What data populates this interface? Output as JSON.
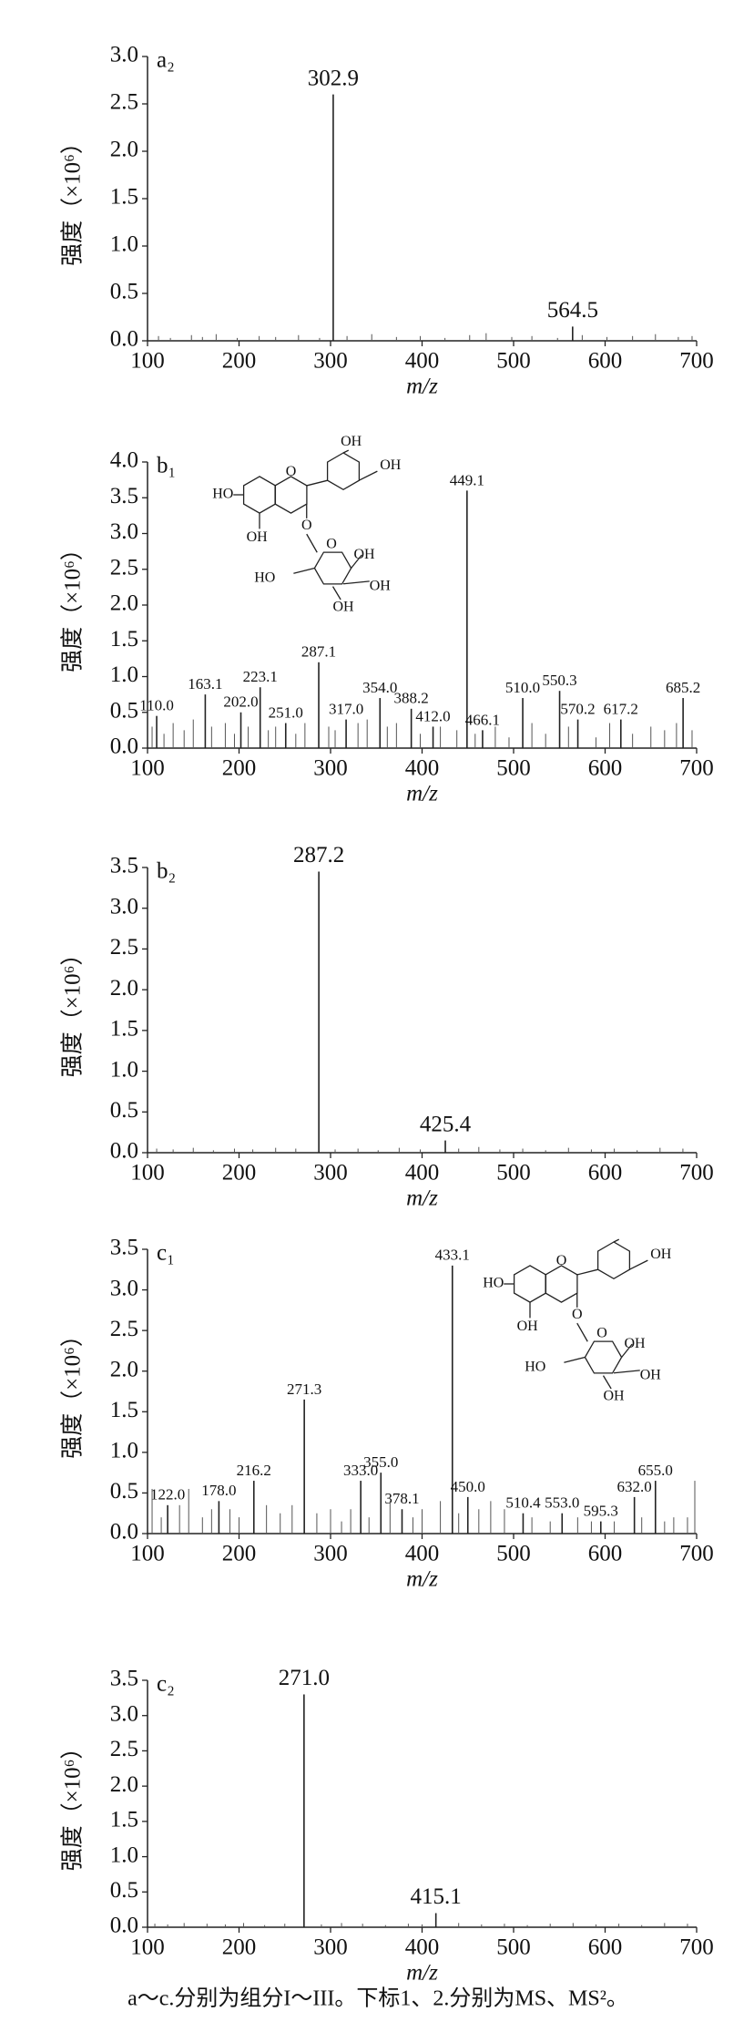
{
  "chart_data": [
    {
      "type": "bar",
      "panel_label": "a₂",
      "ylabel": "强度（×10⁶）",
      "xlabel": "m/z",
      "xlim": [
        100,
        700
      ],
      "xticks": [
        100,
        200,
        300,
        400,
        500,
        600,
        700
      ],
      "ylim": [
        0,
        3
      ],
      "yticks": [
        {
          "value": 0,
          "label": "0.0"
        },
        {
          "value": 0.5,
          "label": "0.5"
        },
        {
          "value": 1,
          "label": "1.0"
        },
        {
          "value": 1.5,
          "label": "1.5"
        },
        {
          "value": 2,
          "label": "2.0"
        },
        {
          "value": 2.5,
          "label": "2.5"
        },
        {
          "value": 3,
          "label": "3.0"
        }
      ],
      "series": [
        {
          "color": "#222222",
          "x": [
            302.9,
            564.5
          ],
          "x_labels": [
            "302.9",
            "564.5"
          ],
          "values": [
            2.6,
            0.15
          ]
        },
        {
          "color": "#555555",
          "x": [
            112,
            125,
            148,
            160,
            175,
            198,
            222,
            240,
            265,
            288,
            318,
            345,
            372,
            398,
            425,
            452,
            470,
            498,
            520,
            548,
            575,
            602,
            630,
            655,
            680,
            695
          ],
          "values": [
            0.05,
            0.03,
            0.06,
            0.04,
            0.07,
            0.03,
            0.05,
            0.04,
            0.06,
            0.03,
            0.05,
            0.07,
            0.04,
            0.05,
            0.03,
            0.06,
            0.08,
            0.04,
            0.05,
            0.03,
            0.06,
            0.04,
            0.05,
            0.07,
            0.04,
            0.05
          ]
        }
      ]
    },
    {
      "type": "bar",
      "panel_label": "b₁",
      "ylabel": "强度（×10⁶）",
      "xlabel": "m/z",
      "xlim": [
        100,
        700
      ],
      "xticks": [
        100,
        200,
        300,
        400,
        500,
        600,
        700
      ],
      "ylim": [
        0,
        4
      ],
      "yticks": [
        {
          "value": 0,
          "label": "0.0"
        },
        {
          "value": 0.5,
          "label": "0.5"
        },
        {
          "value": 1,
          "label": "1.0"
        },
        {
          "value": 1.5,
          "label": "1.5"
        },
        {
          "value": 2,
          "label": "2.0"
        },
        {
          "value": 2.5,
          "label": "2.5"
        },
        {
          "value": 3,
          "label": "3.0"
        },
        {
          "value": 3.5,
          "label": "3.5"
        },
        {
          "value": 4,
          "label": "4.0"
        }
      ],
      "structure_labels": [
        "OH",
        "OH",
        "HO",
        "O",
        "OH",
        "O",
        "O",
        "OH",
        "HO",
        "OH",
        "OH"
      ],
      "series": [
        {
          "color": "#222222",
          "x": [
            110.0,
            163.1,
            202.0,
            223.1,
            251.0,
            287.1,
            317.0,
            354.0,
            388.2,
            412.0,
            449.1,
            466.1,
            510.0,
            550.3,
            570.2,
            617.2,
            685.2
          ],
          "x_labels": [
            "110.0",
            "163.1",
            "202.0",
            "223.1",
            "251.0",
            "287.1",
            "317.0",
            "354.0",
            "388.2",
            "412.0",
            "449.1",
            "466.1",
            "510.0",
            "550.3",
            "570.2",
            "617.2",
            "685.2"
          ],
          "values": [
            0.45,
            0.75,
            0.5,
            0.85,
            0.35,
            1.2,
            0.4,
            0.7,
            0.55,
            0.3,
            3.6,
            0.25,
            0.7,
            0.8,
            0.4,
            0.4,
            0.7
          ]
        },
        {
          "color": "#555555",
          "x": [
            105,
            118,
            128,
            140,
            150,
            170,
            185,
            195,
            210,
            232,
            240,
            262,
            272,
            298,
            305,
            330,
            340,
            362,
            372,
            398,
            420,
            438,
            458,
            480,
            495,
            520,
            535,
            560,
            590,
            605,
            630,
            650,
            665,
            678,
            695
          ],
          "values": [
            0.3,
            0.2,
            0.35,
            0.25,
            0.4,
            0.3,
            0.35,
            0.2,
            0.3,
            0.25,
            0.3,
            0.2,
            0.35,
            0.3,
            0.25,
            0.35,
            0.4,
            0.3,
            0.35,
            0.2,
            0.3,
            0.25,
            0.2,
            0.3,
            0.15,
            0.35,
            0.2,
            0.3,
            0.15,
            0.35,
            0.2,
            0.3,
            0.25,
            0.35,
            0.25
          ]
        }
      ]
    },
    {
      "type": "bar",
      "panel_label": "b₂",
      "ylabel": "强度（×10⁶）",
      "xlabel": "m/z",
      "xlim": [
        100,
        700
      ],
      "xticks": [
        100,
        200,
        300,
        400,
        500,
        600,
        700
      ],
      "ylim": [
        0,
        3.5
      ],
      "yticks": [
        {
          "value": 0,
          "label": "0.0"
        },
        {
          "value": 0.5,
          "label": "0.5"
        },
        {
          "value": 1,
          "label": "1.0"
        },
        {
          "value": 1.5,
          "label": "1.5"
        },
        {
          "value": 2,
          "label": "2.0"
        },
        {
          "value": 2.5,
          "label": "2.5"
        },
        {
          "value": 3,
          "label": "3.0"
        },
        {
          "value": 3.5,
          "label": "3.5"
        }
      ],
      "series": [
        {
          "color": "#222222",
          "x": [
            287.2,
            425.4
          ],
          "x_labels": [
            "287.2",
            "425.4"
          ],
          "values": [
            3.45,
            0.15
          ]
        },
        {
          "color": "#555555",
          "x": [
            110,
            128,
            150,
            172,
            195,
            215,
            240,
            262,
            305,
            330,
            352,
            375,
            398,
            440,
            462,
            485,
            510,
            535,
            560,
            585,
            610,
            635,
            660,
            685
          ],
          "values": [
            0.05,
            0.04,
            0.06,
            0.03,
            0.05,
            0.04,
            0.06,
            0.05,
            0.04,
            0.05,
            0.03,
            0.06,
            0.04,
            0.05,
            0.07,
            0.04,
            0.05,
            0.03,
            0.06,
            0.04,
            0.05,
            0.03,
            0.06,
            0.05
          ]
        }
      ]
    },
    {
      "type": "bar",
      "panel_label": "c₁",
      "ylabel": "强度（×10⁶）",
      "xlabel": "m/z",
      "xlim": [
        100,
        700
      ],
      "xticks": [
        100,
        200,
        300,
        400,
        500,
        600,
        700
      ],
      "ylim": [
        0,
        3.5
      ],
      "yticks": [
        {
          "value": 0,
          "label": "0.0"
        },
        {
          "value": 0.5,
          "label": "0.5"
        },
        {
          "value": 1,
          "label": "1.0"
        },
        {
          "value": 1.5,
          "label": "1.5"
        },
        {
          "value": 2,
          "label": "2.0"
        },
        {
          "value": 2.5,
          "label": "2.5"
        },
        {
          "value": 3,
          "label": "3.0"
        },
        {
          "value": 3.5,
          "label": "3.5"
        }
      ],
      "structure_labels": [
        "OH",
        "HO",
        "O",
        "OH",
        "O",
        "O",
        "OH",
        "HO",
        "OH",
        "OH"
      ],
      "series": [
        {
          "color": "#222222",
          "x": [
            122.0,
            178.0,
            216.2,
            271.3,
            333.0,
            355.0,
            378.1,
            433.1,
            450.0,
            510.4,
            553.0,
            595.3,
            632.0,
            655.0
          ],
          "x_labels": [
            "122.0",
            "178.0",
            "216.2",
            "271.3",
            "333.0",
            "355.0",
            "378.1",
            "433.1",
            "450.0",
            "510.4",
            "553.0",
            "595.3",
            "632.0",
            "655.0"
          ],
          "values": [
            0.35,
            0.4,
            0.65,
            1.65,
            0.65,
            0.75,
            0.3,
            3.3,
            0.45,
            0.25,
            0.25,
            0.15,
            0.45,
            0.65
          ]
        },
        {
          "color": "#555555",
          "x": [
            105,
            115,
            135,
            145,
            160,
            170,
            190,
            200,
            230,
            245,
            258,
            285,
            300,
            312,
            322,
            342,
            365,
            390,
            400,
            420,
            440,
            462,
            475,
            490,
            520,
            540,
            570,
            585,
            610,
            640,
            665,
            675,
            690,
            698
          ],
          "values": [
            0.55,
            0.2,
            0.35,
            0.55,
            0.2,
            0.3,
            0.3,
            0.2,
            0.35,
            0.25,
            0.35,
            0.25,
            0.3,
            0.15,
            0.3,
            0.2,
            0.4,
            0.2,
            0.3,
            0.4,
            0.25,
            0.3,
            0.4,
            0.3,
            0.2,
            0.15,
            0.2,
            0.15,
            0.15,
            0.2,
            0.15,
            0.2,
            0.2,
            0.65
          ]
        }
      ]
    },
    {
      "type": "bar",
      "panel_label": "c₂",
      "ylabel": "强度（×10⁶）",
      "xlabel": "m/z",
      "xlim": [
        100,
        700
      ],
      "xticks": [
        100,
        200,
        300,
        400,
        500,
        600,
        700
      ],
      "ylim": [
        0,
        3.5
      ],
      "yticks": [
        {
          "value": 0,
          "label": "0.0"
        },
        {
          "value": 0.5,
          "label": "0.5"
        },
        {
          "value": 1,
          "label": "1.0"
        },
        {
          "value": 1.5,
          "label": "1.5"
        },
        {
          "value": 2,
          "label": "2.0"
        },
        {
          "value": 2.5,
          "label": "2.5"
        },
        {
          "value": 3,
          "label": "3.0"
        },
        {
          "value": 3.5,
          "label": "3.5"
        }
      ],
      "series": [
        {
          "color": "#222222",
          "x": [
            271.0,
            415.1
          ],
          "x_labels": [
            "271.0",
            "415.1"
          ],
          "values": [
            3.3,
            0.2
          ]
        },
        {
          "color": "#555555",
          "x": [
            108,
            122,
            140,
            165,
            185,
            205,
            228,
            250,
            290,
            312,
            335,
            360,
            385,
            400,
            440,
            465,
            490,
            515,
            540,
            565,
            590,
            615,
            640,
            665,
            690
          ],
          "values": [
            0.05,
            0.04,
            0.06,
            0.05,
            0.04,
            0.06,
            0.03,
            0.05,
            0.04,
            0.06,
            0.05,
            0.03,
            0.05,
            0.04,
            0.06,
            0.04,
            0.05,
            0.03,
            0.05,
            0.06,
            0.04,
            0.05,
            0.03,
            0.06,
            0.05
          ]
        }
      ]
    }
  ],
  "caption": "a～c.分别为组分I～III。下标1、2.分别为MS、MS²。"
}
